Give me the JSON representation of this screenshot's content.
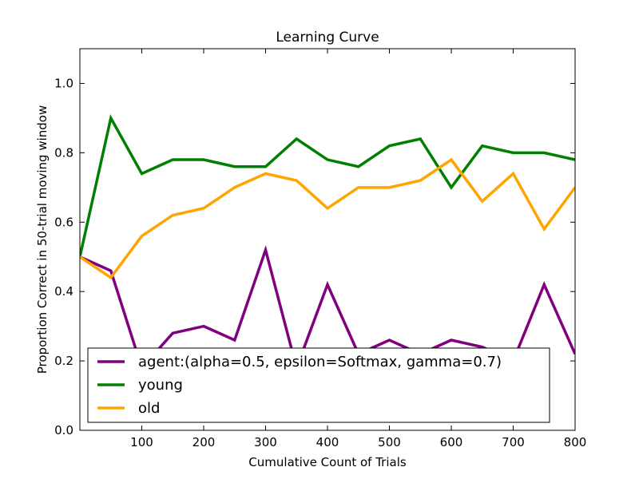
{
  "chart_data": {
    "type": "line",
    "title": "Learning Curve",
    "xlabel": "Cumulative Count of Trials",
    "ylabel": "Proportion Correct in 50-trial moving window",
    "xlim": [
      0,
      800
    ],
    "ylim": [
      0.0,
      1.1
    ],
    "xticks": [
      100,
      200,
      300,
      400,
      500,
      600,
      700,
      800
    ],
    "xtick_labels": [
      "100",
      "200",
      "300",
      "400",
      "500",
      "600",
      "700",
      "800"
    ],
    "yticks": [
      0.0,
      0.2,
      0.4,
      0.6,
      0.8,
      1.0
    ],
    "ytick_labels": [
      "0.0",
      "0.2",
      "0.4",
      "0.6",
      "0.8",
      "1.0"
    ],
    "grid": false,
    "legend_position": "bottom-left",
    "x": [
      0,
      50,
      100,
      150,
      200,
      250,
      300,
      350,
      400,
      450,
      500,
      550,
      600,
      650,
      700,
      750,
      800
    ],
    "series": [
      {
        "name": "agent:(alpha=0.5, epsilon=Softmax, gamma=0.7)",
        "color": "#800080",
        "values": [
          0.5,
          0.46,
          0.18,
          0.28,
          0.3,
          0.26,
          0.52,
          0.18,
          0.42,
          0.22,
          0.26,
          0.22,
          0.26,
          0.24,
          0.2,
          0.42,
          0.22
        ]
      },
      {
        "name": "young",
        "color": "#008000",
        "values": [
          0.5,
          0.9,
          0.74,
          0.78,
          0.78,
          0.76,
          0.76,
          0.84,
          0.78,
          0.76,
          0.82,
          0.84,
          0.7,
          0.82,
          0.8,
          0.8,
          0.78
        ]
      },
      {
        "name": "old",
        "color": "#FFA500",
        "values": [
          0.5,
          0.44,
          0.56,
          0.62,
          0.64,
          0.7,
          0.74,
          0.72,
          0.64,
          0.7,
          0.7,
          0.72,
          0.78,
          0.66,
          0.74,
          0.58,
          0.7
        ]
      }
    ]
  }
}
